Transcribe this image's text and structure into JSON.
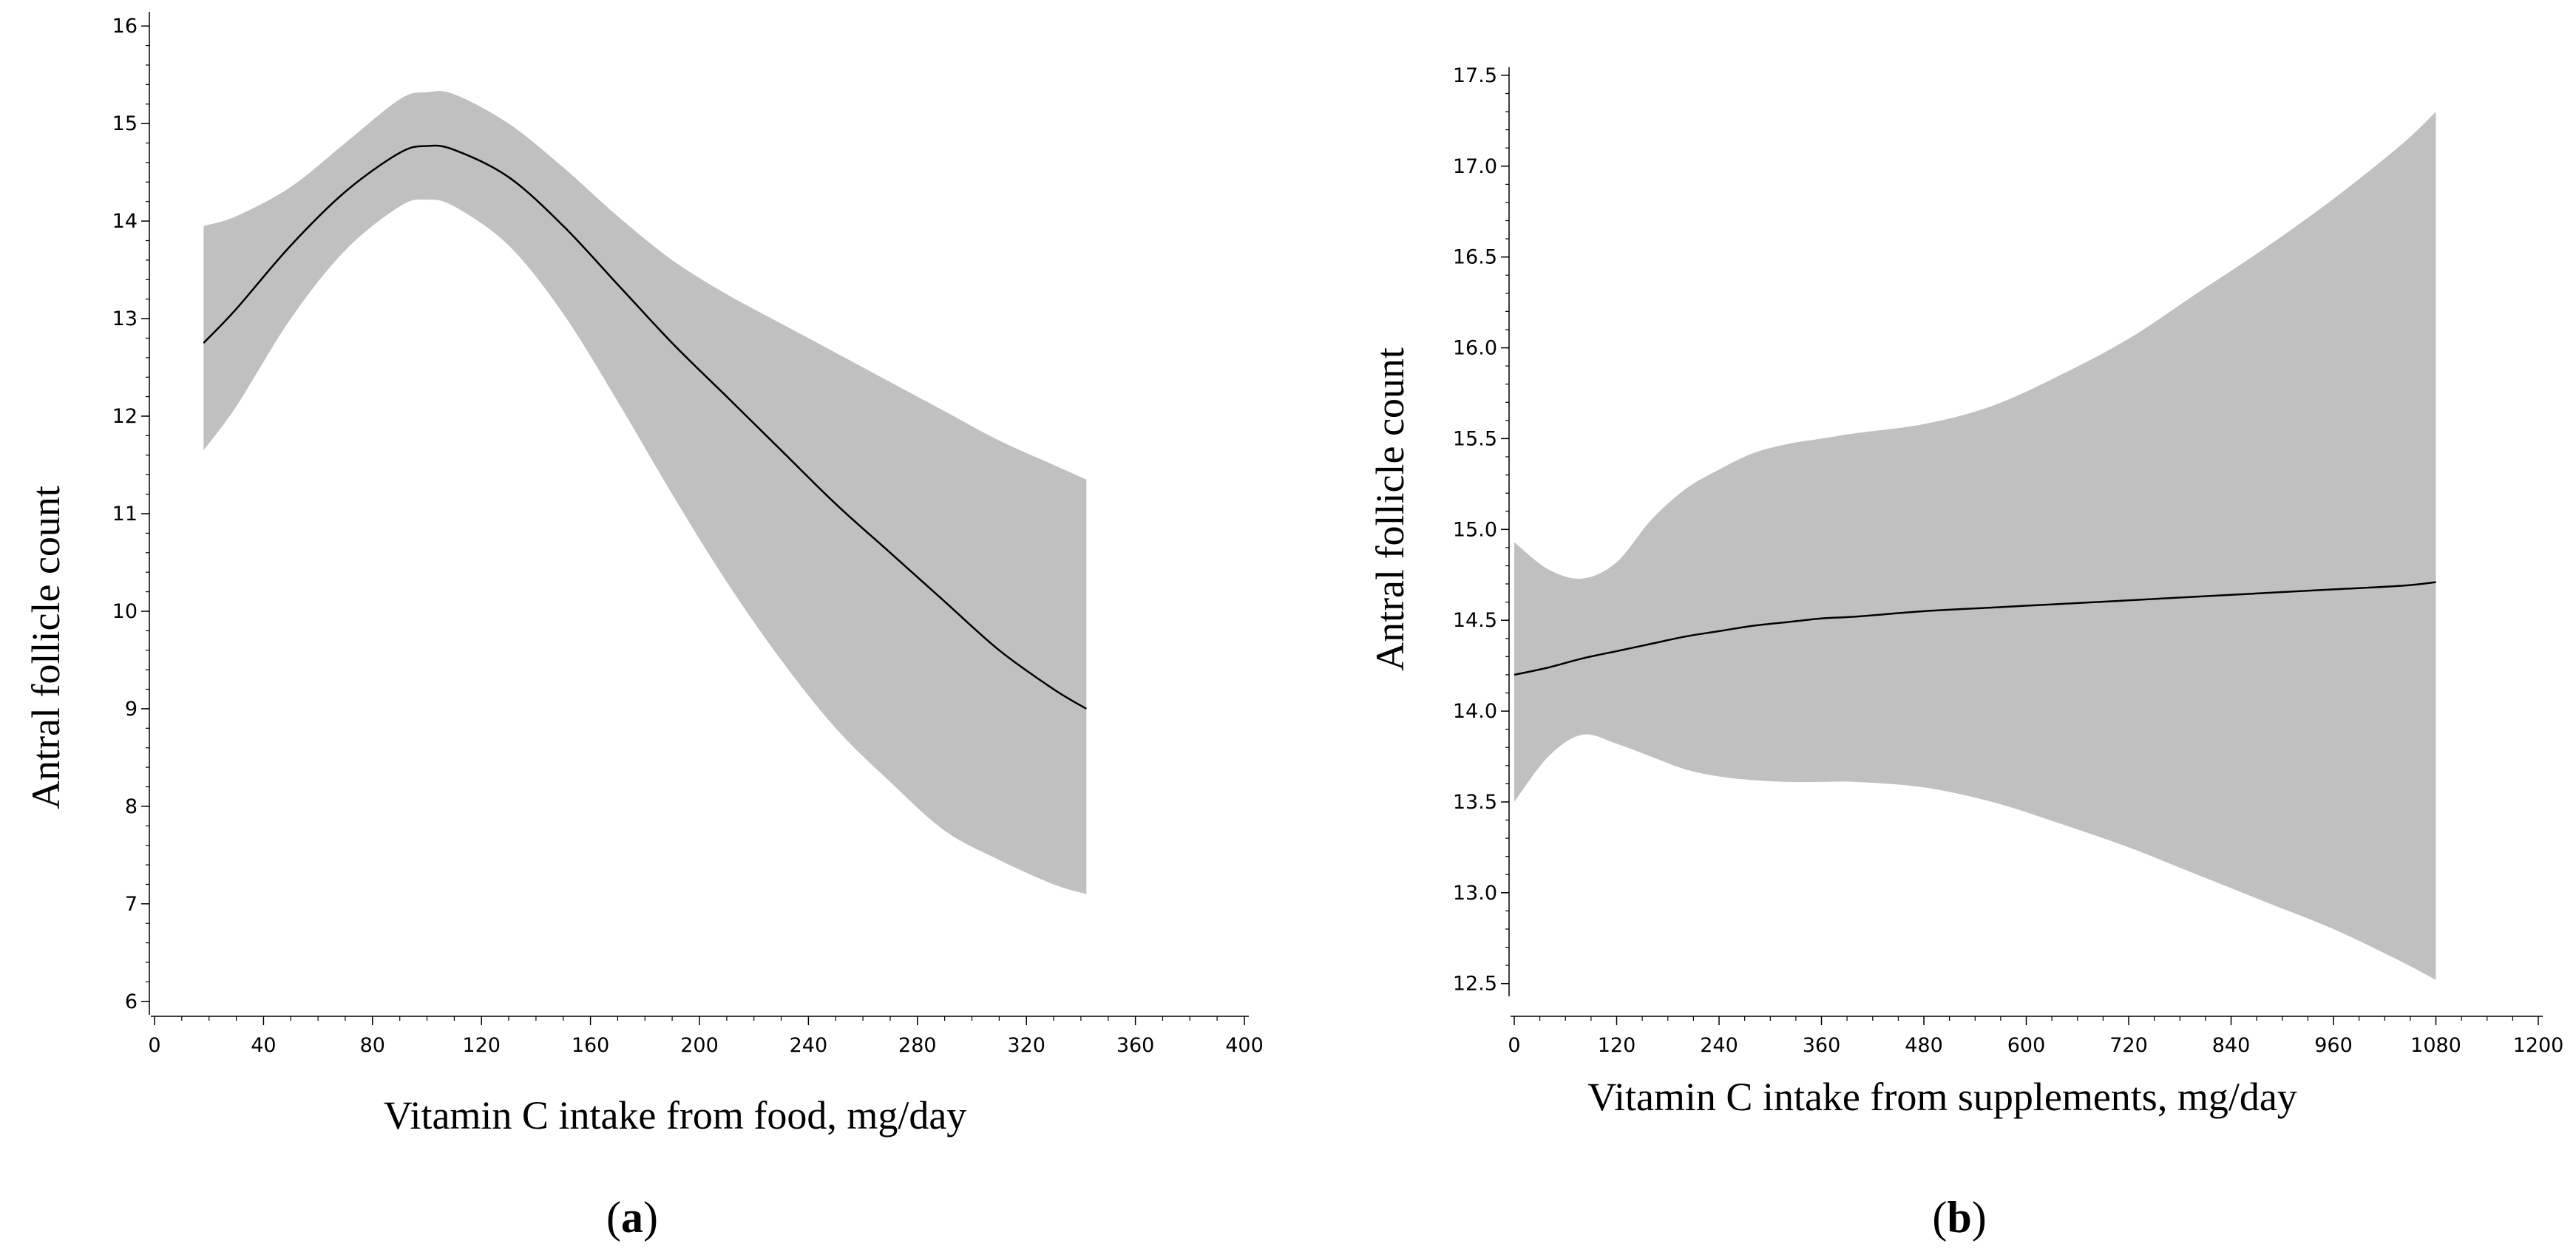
{
  "chart_data": [
    {
      "type": "line",
      "panel_label": "a",
      "xlabel": "Vitamin C intake from food, mg/day",
      "ylabel": "Antral follicle count",
      "xlim": [
        0,
        400
      ],
      "ylim": [
        5.9,
        16.1
      ],
      "x_ticks": [
        0,
        40,
        80,
        120,
        160,
        200,
        240,
        280,
        320,
        360,
        400
      ],
      "x_tick_labels": [
        "0",
        "40",
        "80",
        "120",
        "160",
        "200",
        "240",
        "280",
        "320",
        "360",
        "400"
      ],
      "y_ticks": [
        6,
        7,
        8,
        9,
        10,
        11,
        12,
        13,
        14,
        15,
        16
      ],
      "y_tick_labels": [
        "6",
        "7",
        "8",
        "9",
        "10",
        "11",
        "12",
        "13",
        "14",
        "15",
        "16"
      ],
      "y_minor_step": 0.2,
      "series": [
        {
          "name": "estimate",
          "x": [
            18,
            30,
            50,
            70,
            90,
            100,
            110,
            130,
            150,
            170,
            190,
            210,
            230,
            250,
            270,
            290,
            310,
            330,
            342
          ],
          "y": [
            12.75,
            13.1,
            13.75,
            14.3,
            14.7,
            14.77,
            14.73,
            14.45,
            13.95,
            13.35,
            12.75,
            12.2,
            11.65,
            11.1,
            10.6,
            10.1,
            9.6,
            9.2,
            9.0
          ],
          "lower": [
            11.65,
            12.1,
            13.0,
            13.7,
            14.15,
            14.22,
            14.15,
            13.75,
            13.05,
            12.15,
            11.2,
            10.3,
            9.5,
            8.8,
            8.25,
            7.75,
            7.45,
            7.2,
            7.1
          ],
          "upper": [
            13.95,
            14.05,
            14.35,
            14.8,
            15.25,
            15.32,
            15.3,
            15.0,
            14.55,
            14.05,
            13.6,
            13.25,
            12.95,
            12.65,
            12.35,
            12.05,
            11.75,
            11.5,
            11.35
          ]
        }
      ]
    },
    {
      "type": "line",
      "panel_label": "b",
      "xlabel": "Vitamin C intake from supplements, mg/day",
      "ylabel": "Antral follicle count",
      "xlim": [
        0,
        1200
      ],
      "ylim": [
        12.45,
        17.52
      ],
      "x_ticks": [
        0,
        120,
        240,
        360,
        480,
        600,
        720,
        840,
        960,
        1080,
        1200
      ],
      "x_tick_labels": [
        "0",
        "120",
        "240",
        "360",
        "480",
        "600",
        "720",
        "840",
        "960",
        "1080",
        "1200"
      ],
      "y_ticks": [
        12.5,
        13.0,
        13.5,
        14.0,
        14.5,
        15.0,
        15.5,
        16.0,
        16.5,
        17.0,
        17.5
      ],
      "y_tick_labels": [
        "12.5",
        "13.0",
        "13.5",
        "14.0",
        "14.5",
        "15.0",
        "15.5",
        "16.0",
        "16.5",
        "17.0",
        "17.5"
      ],
      "y_minor_step": 0.1,
      "series": [
        {
          "name": "estimate",
          "x": [
            0,
            40,
            80,
            120,
            160,
            200,
            240,
            280,
            320,
            360,
            400,
            480,
            560,
            640,
            720,
            800,
            880,
            960,
            1040,
            1080
          ],
          "y": [
            14.2,
            14.24,
            14.29,
            14.33,
            14.37,
            14.41,
            14.44,
            14.47,
            14.49,
            14.51,
            14.52,
            14.55,
            14.57,
            14.59,
            14.61,
            14.63,
            14.65,
            14.67,
            14.69,
            14.71
          ],
          "lower": [
            13.5,
            13.75,
            13.87,
            13.82,
            13.75,
            13.68,
            13.64,
            13.62,
            13.61,
            13.61,
            13.61,
            13.58,
            13.5,
            13.38,
            13.25,
            13.1,
            12.95,
            12.8,
            12.62,
            12.52
          ],
          "upper": [
            14.93,
            14.78,
            14.73,
            14.82,
            15.05,
            15.22,
            15.33,
            15.42,
            15.47,
            15.5,
            15.53,
            15.58,
            15.68,
            15.85,
            16.05,
            16.3,
            16.55,
            16.82,
            17.12,
            17.3
          ]
        }
      ]
    }
  ],
  "colors": {
    "band": "#c0c0c0",
    "line": "#000000",
    "axis": "#000000"
  }
}
